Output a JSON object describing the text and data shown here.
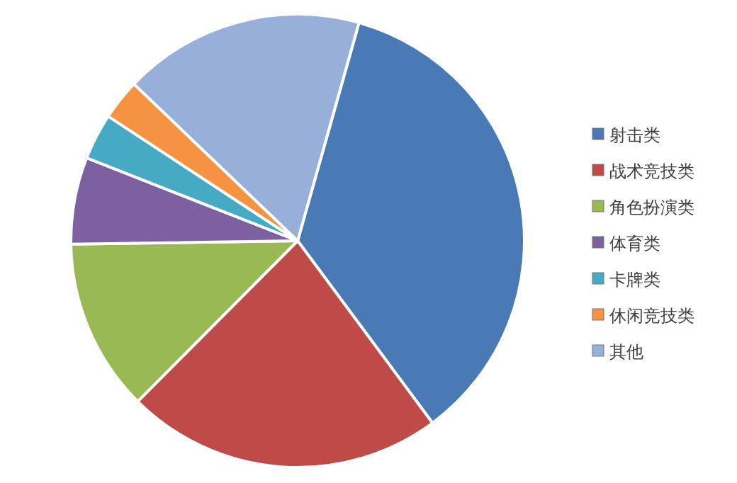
{
  "chart_data": {
    "type": "pie",
    "categories": [
      "射击类",
      "战术竞技类",
      "角色扮演类",
      "体育类",
      "卡牌类",
      "休闲竞技类",
      "其他"
    ],
    "values": [
      35.5,
      22.6,
      12.3,
      6.2,
      3.3,
      2.9,
      17.2
    ],
    "colors": [
      "#4a7ab5",
      "#be4b48",
      "#98b954",
      "#7d60a0",
      "#46aac5",
      "#f59342",
      "#97afd9"
    ],
    "legend": "right"
  }
}
